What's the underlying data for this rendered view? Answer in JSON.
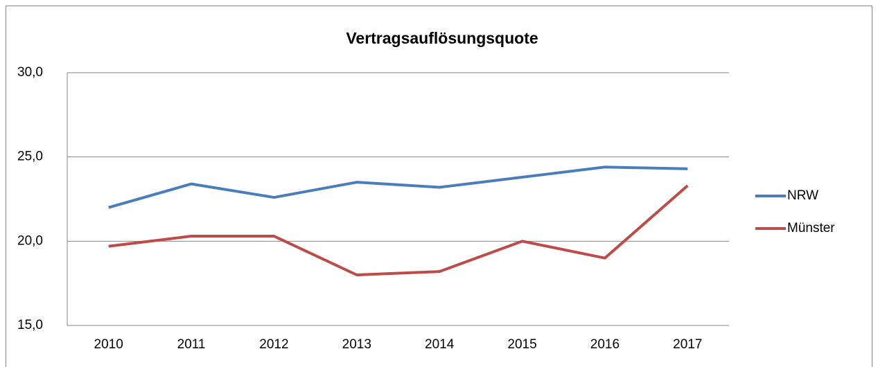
{
  "chart_data": {
    "type": "line",
    "title": "Vertragsauflösungsquote",
    "categories": [
      "2010",
      "2011",
      "2012",
      "2013",
      "2014",
      "2015",
      "2016",
      "2017"
    ],
    "series": [
      {
        "name": "NRW",
        "color": "#4a7ebb",
        "values": [
          22.0,
          23.4,
          22.6,
          23.5,
          23.2,
          23.8,
          24.4,
          24.3
        ]
      },
      {
        "name": "Münster",
        "color": "#be4b48",
        "values": [
          19.7,
          20.3,
          20.3,
          18.0,
          18.2,
          20.0,
          19.0,
          23.3
        ]
      }
    ],
    "ylim": [
      15,
      30
    ],
    "yticks": [
      {
        "value": 15,
        "label": "15,0"
      },
      {
        "value": 20,
        "label": "20,0"
      },
      {
        "value": 25,
        "label": "25,0"
      },
      {
        "value": 30,
        "label": "30,0"
      }
    ],
    "grid": true,
    "legend": "right"
  }
}
